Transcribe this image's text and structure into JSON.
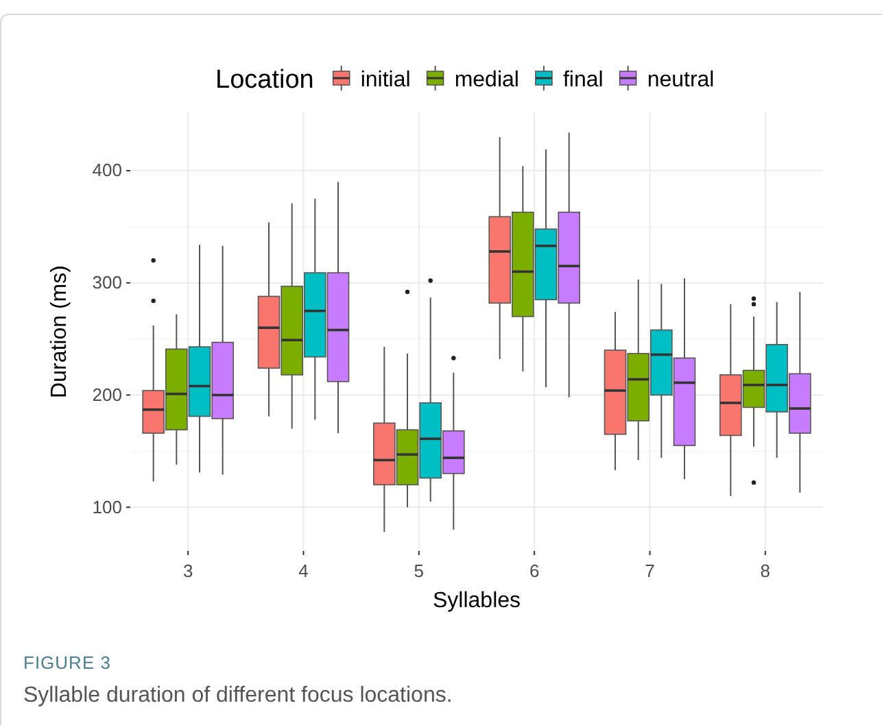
{
  "chart_data": {
    "type": "box",
    "xlabel": "Syllables",
    "ylabel": "Duration (ms)",
    "legend_title": "Location",
    "legend": "top",
    "categories": [
      "3",
      "4",
      "5",
      "6",
      "7",
      "8"
    ],
    "ylim": [
      61,
      452
    ],
    "yticks": [
      100,
      200,
      300,
      400
    ],
    "grid": true,
    "annotations": [
      "FIGURE 3",
      "Syllable duration of different focus locations."
    ],
    "series": [
      {
        "name": "initial",
        "color": "#f8766d",
        "boxes": [
          {
            "low": 123,
            "q1": 166,
            "median": 187,
            "q3": 204,
            "high": 262,
            "outliers": [
              284,
              320
            ]
          },
          {
            "low": 181,
            "q1": 224,
            "median": 260,
            "q3": 288,
            "high": 354
          },
          {
            "low": 78,
            "q1": 120,
            "median": 142,
            "q3": 175,
            "high": 243
          },
          {
            "low": 232,
            "q1": 282,
            "median": 328,
            "q3": 359,
            "high": 430
          },
          {
            "low": 133,
            "q1": 165,
            "median": 204,
            "q3": 240,
            "high": 274
          },
          {
            "low": 110,
            "q1": 164,
            "median": 193,
            "q3": 218,
            "high": 281
          }
        ]
      },
      {
        "name": "medial",
        "color": "#7cae00",
        "boxes": [
          {
            "low": 138,
            "q1": 169,
            "median": 201,
            "q3": 241,
            "high": 272
          },
          {
            "low": 170,
            "q1": 218,
            "median": 249,
            "q3": 297,
            "high": 371
          },
          {
            "low": 100,
            "q1": 120,
            "median": 147,
            "q3": 169,
            "high": 237,
            "outliers": [
              292
            ]
          },
          {
            "low": 221,
            "q1": 270,
            "median": 310,
            "q3": 363,
            "high": 404
          },
          {
            "low": 142,
            "q1": 177,
            "median": 214,
            "q3": 237,
            "high": 303
          },
          {
            "low": 154,
            "q1": 189,
            "median": 209,
            "q3": 222,
            "high": 270,
            "outliers": [
              122,
              281,
              286
            ]
          }
        ]
      },
      {
        "name": "final",
        "color": "#00bfc4",
        "boxes": [
          {
            "low": 131,
            "q1": 181,
            "median": 208,
            "q3": 243,
            "high": 334
          },
          {
            "low": 178,
            "q1": 234,
            "median": 275,
            "q3": 309,
            "high": 375
          },
          {
            "low": 105,
            "q1": 126,
            "median": 161,
            "q3": 193,
            "high": 287,
            "outliers": [
              302
            ]
          },
          {
            "low": 207,
            "q1": 285,
            "median": 333,
            "q3": 348,
            "high": 419
          },
          {
            "low": 144,
            "q1": 200,
            "median": 236,
            "q3": 258,
            "high": 299
          },
          {
            "low": 144,
            "q1": 185,
            "median": 209,
            "q3": 245,
            "high": 283
          }
        ]
      },
      {
        "name": "neutral",
        "color": "#c77cff",
        "boxes": [
          {
            "low": 129,
            "q1": 179,
            "median": 200,
            "q3": 247,
            "high": 333
          },
          {
            "low": 166,
            "q1": 212,
            "median": 258,
            "q3": 309,
            "high": 390
          },
          {
            "low": 80,
            "q1": 130,
            "median": 144,
            "q3": 168,
            "high": 220,
            "outliers": [
              233
            ]
          },
          {
            "low": 198,
            "q1": 282,
            "median": 315,
            "q3": 363,
            "high": 434
          },
          {
            "low": 125,
            "q1": 155,
            "median": 211,
            "q3": 233,
            "high": 304
          },
          {
            "low": 113,
            "q1": 166,
            "median": 188,
            "q3": 219,
            "high": 292
          }
        ]
      }
    ]
  }
}
